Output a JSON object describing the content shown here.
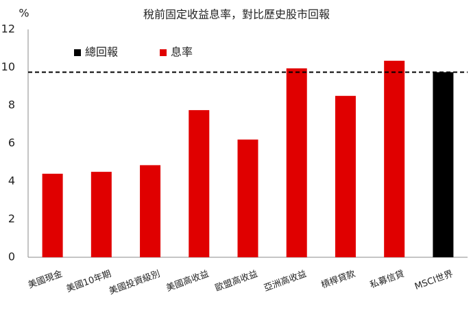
{
  "chart_data": {
    "type": "bar",
    "title": "稅前固定收益息率，對比歷史股市回報",
    "y_unit": "%",
    "categories": [
      "美國現金",
      "美國10年期",
      "美國投資級別",
      "美國高收益",
      "歐盟高收益",
      "亞洲高收益",
      "槓桿貸款",
      "私募信貸",
      "MSCI世界"
    ],
    "series": [
      {
        "name": "總回報",
        "color": "#000000",
        "values": [
          null,
          null,
          null,
          null,
          null,
          null,
          null,
          null,
          9.75
        ]
      },
      {
        "name": "息率",
        "color": "#e00000",
        "values": [
          4.4,
          4.5,
          4.85,
          7.75,
          6.2,
          9.95,
          8.5,
          10.35,
          null
        ]
      }
    ],
    "reference_line": 9.75,
    "ylim": [
      0,
      12
    ],
    "yticks": [
      0,
      2,
      4,
      6,
      8,
      10,
      12
    ],
    "grid": false,
    "legend": "top-left"
  }
}
